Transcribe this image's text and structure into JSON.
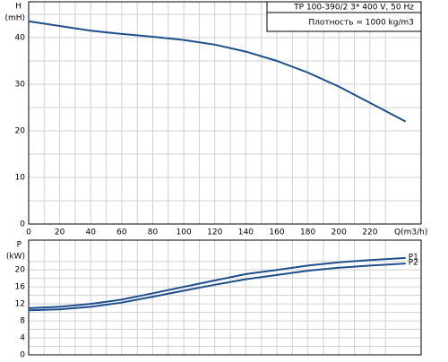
{
  "chart_data": [
    {
      "type": "line",
      "y_label": "H",
      "y_unit": "(mH)",
      "x_label": "Q(m3/h)",
      "annotations": [
        "TP 100-390/2   3* 400 V, 50 Hz",
        "Плотность = 1000 kg/m3"
      ],
      "x": [
        0,
        20,
        40,
        60,
        80,
        100,
        120,
        140,
        160,
        180,
        200,
        220,
        243
      ],
      "series": [
        {
          "name": "H",
          "color": "#1f4e8c",
          "values": [
            43.5,
            42.5,
            41.5,
            40.8,
            40.2,
            39.5,
            38.5,
            37,
            35,
            32.5,
            29.5,
            26,
            22
          ]
        }
      ],
      "xlim": [
        0,
        253
      ],
      "xticks": [
        0,
        20,
        40,
        60,
        80,
        100,
        120,
        140,
        160,
        180,
        200,
        220
      ],
      "ylim": [
        0,
        47.7
      ],
      "yticks": [
        0,
        10,
        20,
        30,
        40
      ],
      "grid": true,
      "minor_grid": true
    },
    {
      "type": "line",
      "y_label": "P",
      "y_unit": "(kW)",
      "sharex": true,
      "x": [
        0,
        20,
        40,
        60,
        80,
        100,
        120,
        140,
        160,
        180,
        200,
        220,
        243
      ],
      "series": [
        {
          "name": "P1",
          "color": "#1f4e8c",
          "values": [
            11,
            11.3,
            12,
            13,
            14.5,
            16,
            17.5,
            19,
            20,
            21,
            21.8,
            22.3,
            22.8
          ]
        },
        {
          "name": "P2",
          "color": "#1f4e8c",
          "values": [
            10.5,
            10.7,
            11.3,
            12.3,
            13.7,
            15.1,
            16.5,
            17.8,
            18.8,
            19.8,
            20.5,
            21,
            21.5
          ]
        }
      ],
      "xlim": [
        0,
        253
      ],
      "ylim": [
        0,
        27
      ],
      "yticks": [
        0,
        4,
        8,
        12,
        16,
        20
      ],
      "grid": true,
      "minor_grid": true
    }
  ]
}
